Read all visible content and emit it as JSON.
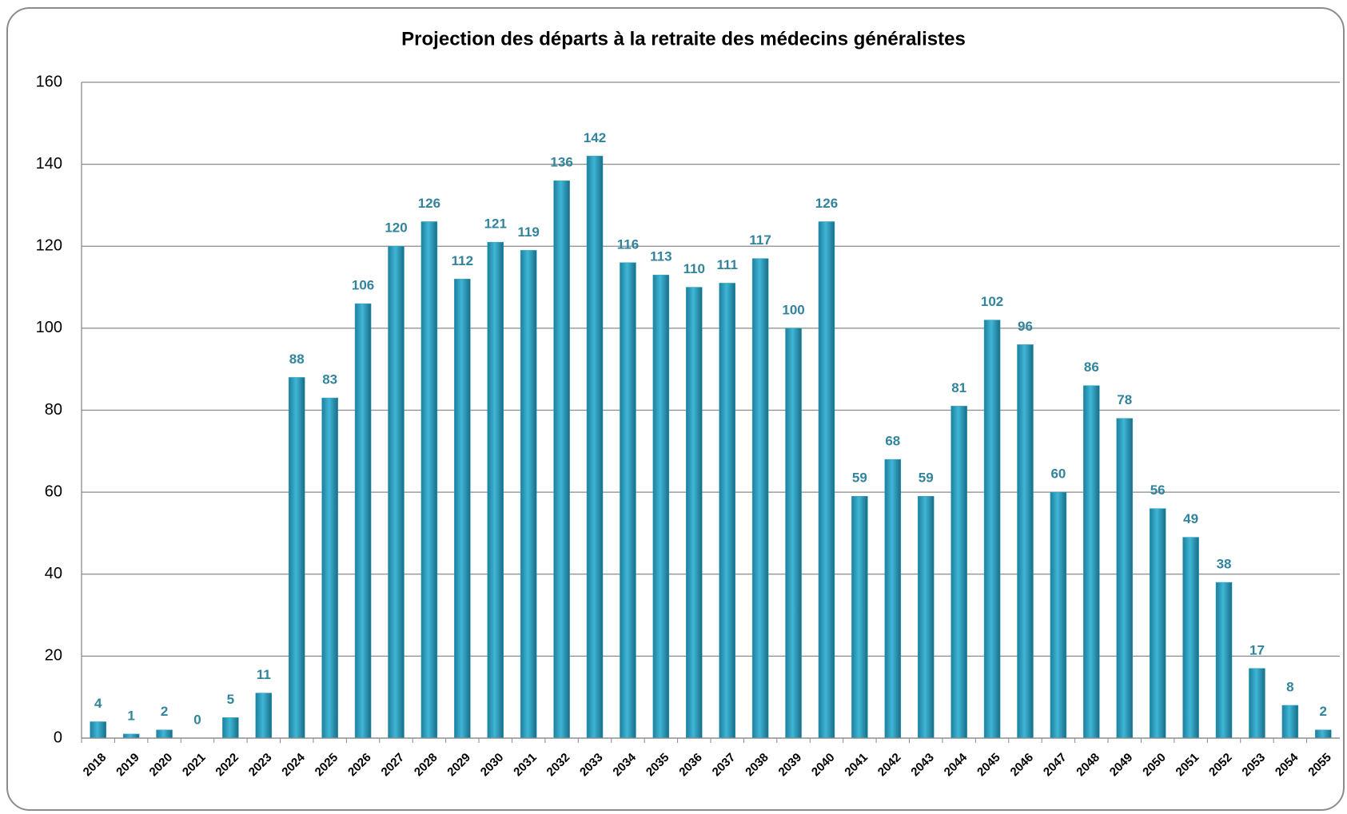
{
  "chart_data": {
    "type": "bar",
    "title": "Projection des départs à la retraite des médecins généralistes",
    "categories": [
      "2018",
      "2019",
      "2020",
      "2021",
      "2022",
      "2023",
      "2024",
      "2025",
      "2026",
      "2027",
      "2028",
      "2029",
      "2030",
      "2031",
      "2032",
      "2033",
      "2034",
      "2035",
      "2036",
      "2037",
      "2038",
      "2039",
      "2040",
      "2041",
      "2042",
      "2043",
      "2044",
      "2045",
      "2046",
      "2047",
      "2048",
      "2049",
      "2050",
      "2051",
      "2052",
      "2053",
      "2054",
      "2055"
    ],
    "values": [
      4,
      1,
      2,
      0,
      5,
      11,
      88,
      83,
      106,
      120,
      126,
      112,
      121,
      119,
      136,
      142,
      116,
      113,
      110,
      111,
      117,
      100,
      126,
      59,
      68,
      59,
      81,
      102,
      96,
      60,
      86,
      78,
      56,
      49,
      38,
      17,
      8,
      2
    ],
    "color": "#2ea3c4",
    "ylim": [
      0,
      160
    ],
    "yticks": [
      0,
      20,
      40,
      60,
      80,
      100,
      120,
      140,
      160
    ],
    "grid": true
  }
}
